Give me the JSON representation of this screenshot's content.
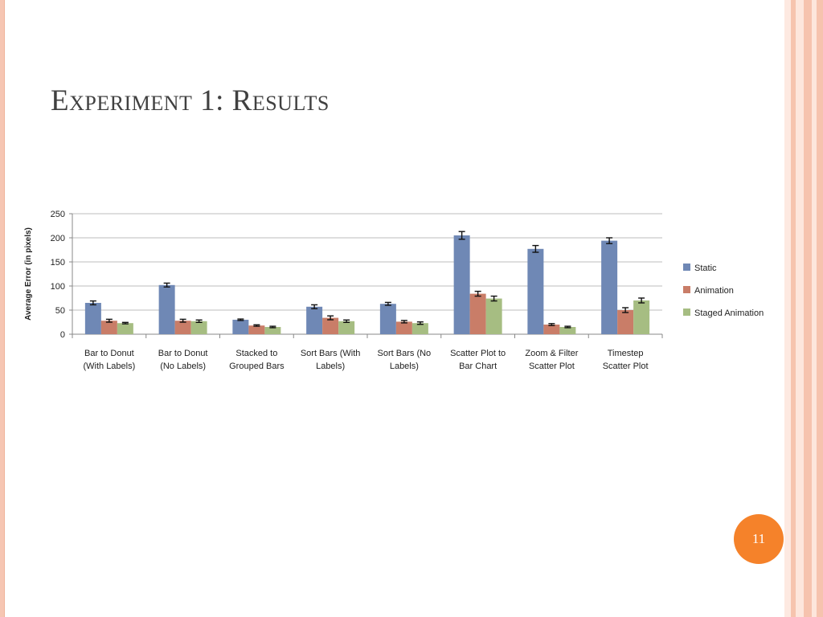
{
  "slide": {
    "title": "Experiment 1: Results",
    "page_number": "11"
  },
  "colors": {
    "border_light": "#fde6dc",
    "border_mid": "#f6c3ae",
    "badge": "#f5822a",
    "static": "#6f88b5",
    "animation": "#c97d68",
    "staged": "#a6bd82"
  },
  "chart_data": {
    "type": "bar",
    "ylabel": "Average Error  (in pixels)",
    "xlabel": "",
    "ylim": [
      0,
      250
    ],
    "yticks": [
      0,
      50,
      100,
      150,
      200,
      250
    ],
    "grid": true,
    "legend_position": "right",
    "categories": [
      [
        "Bar to Donut",
        "(With Labels)"
      ],
      [
        "Bar to Donut",
        "(No Labels)"
      ],
      [
        "Stacked to",
        "Grouped Bars"
      ],
      [
        "Sort Bars (With",
        "Labels)"
      ],
      [
        "Sort Bars (No",
        "Labels)"
      ],
      [
        "Scatter Plot to",
        "Bar Chart"
      ],
      [
        "Zoom & Filter",
        "Scatter Plot"
      ],
      [
        "Timestep",
        "Scatter Plot"
      ]
    ],
    "series": [
      {
        "name": "Static",
        "color": "#6f88b5",
        "values": [
          65,
          102,
          30,
          57,
          63,
          205,
          177,
          194
        ],
        "errors": [
          4,
          4,
          1.5,
          4,
          3,
          8,
          7,
          6
        ]
      },
      {
        "name": "Animation",
        "color": "#c97d68",
        "values": [
          28,
          28,
          18,
          34,
          26,
          84,
          20,
          50
        ],
        "errors": [
          3,
          3,
          1.5,
          4,
          2.5,
          5,
          2,
          5
        ]
      },
      {
        "name": "Staged Animation",
        "color": "#a6bd82",
        "values": [
          23,
          27,
          15,
          27,
          23,
          74,
          15,
          70
        ],
        "errors": [
          1.5,
          2.5,
          1.5,
          2.5,
          2.5,
          5,
          1.5,
          5
        ]
      }
    ]
  }
}
